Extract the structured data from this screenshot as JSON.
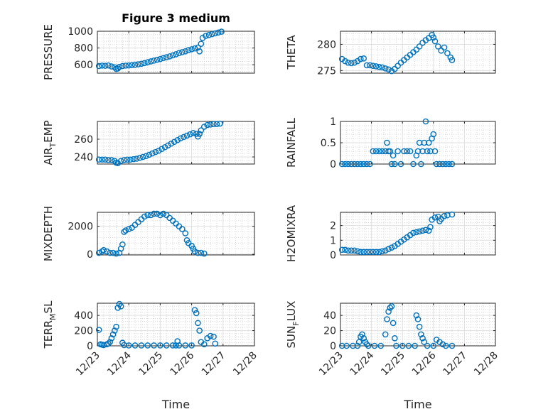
{
  "figure": {
    "title": "Figure 3 medium",
    "marker_color": "#0072BD",
    "axis_color": "#262626",
    "grid": "on",
    "minor_grid": "on"
  },
  "chart_data": [
    {
      "type": "scatter",
      "ylabel": "PRESSURE",
      "ylim": [
        500,
        1000
      ],
      "yticks": [
        600,
        800,
        1000
      ],
      "xlim": [
        0,
        5
      ],
      "xticks_labels": [
        "12/23",
        "12/24",
        "12/25",
        "12/26",
        "12/27",
        "12/28"
      ],
      "show_xticklabels": false,
      "title": "Figure 3 medium",
      "points": [
        [
          0.05,
          585
        ],
        [
          0.15,
          590
        ],
        [
          0.25,
          588
        ],
        [
          0.35,
          592
        ],
        [
          0.45,
          580
        ],
        [
          0.55,
          570
        ],
        [
          0.6,
          550
        ],
        [
          0.65,
          555
        ],
        [
          0.7,
          575
        ],
        [
          0.8,
          585
        ],
        [
          0.9,
          590
        ],
        [
          1.0,
          592
        ],
        [
          1.1,
          596
        ],
        [
          1.2,
          600
        ],
        [
          1.3,
          605
        ],
        [
          1.4,
          612
        ],
        [
          1.5,
          620
        ],
        [
          1.6,
          630
        ],
        [
          1.7,
          640
        ],
        [
          1.8,
          650
        ],
        [
          1.9,
          660
        ],
        [
          2.0,
          668
        ],
        [
          2.1,
          680
        ],
        [
          2.2,
          690
        ],
        [
          2.3,
          700
        ],
        [
          2.4,
          712
        ],
        [
          2.5,
          725
        ],
        [
          2.6,
          740
        ],
        [
          2.7,
          750
        ],
        [
          2.8,
          760
        ],
        [
          2.9,
          775
        ],
        [
          3.0,
          785
        ],
        [
          3.1,
          795
        ],
        [
          3.2,
          805
        ],
        [
          3.25,
          760
        ],
        [
          3.3,
          850
        ],
        [
          3.35,
          920
        ],
        [
          3.45,
          945
        ],
        [
          3.55,
          955
        ],
        [
          3.65,
          965
        ],
        [
          3.75,
          975
        ],
        [
          3.85,
          985
        ],
        [
          3.95,
          995
        ]
      ]
    },
    {
      "type": "scatter",
      "ylabel": "THETA",
      "ylim": [
        274.5,
        282.5
      ],
      "yticks": [
        275,
        280
      ],
      "xlim": [
        0,
        5
      ],
      "xticks_labels": [
        "12/23",
        "12/24",
        "12/25",
        "12/26",
        "12/27",
        "12/28"
      ],
      "show_xticklabels": false,
      "points": [
        [
          0.05,
          277.2
        ],
        [
          0.15,
          276.8
        ],
        [
          0.25,
          276.5
        ],
        [
          0.35,
          276.4
        ],
        [
          0.45,
          276.5
        ],
        [
          0.55,
          276.8
        ],
        [
          0.65,
          277.2
        ],
        [
          0.75,
          277.3
        ],
        [
          0.85,
          276.0
        ],
        [
          0.95,
          276.0
        ],
        [
          1.05,
          275.9
        ],
        [
          1.15,
          275.8
        ],
        [
          1.25,
          275.7
        ],
        [
          1.35,
          275.6
        ],
        [
          1.45,
          275.4
        ],
        [
          1.55,
          275.2
        ],
        [
          1.65,
          274.9
        ],
        [
          1.75,
          275.3
        ],
        [
          1.85,
          275.9
        ],
        [
          1.95,
          276.5
        ],
        [
          2.05,
          277.0
        ],
        [
          2.15,
          277.5
        ],
        [
          2.25,
          278.0
        ],
        [
          2.35,
          278.5
        ],
        [
          2.45,
          279.0
        ],
        [
          2.55,
          279.6
        ],
        [
          2.65,
          280.3
        ],
        [
          2.75,
          280.8
        ],
        [
          2.85,
          281.2
        ],
        [
          2.95,
          281.8
        ],
        [
          3.0,
          281.3
        ],
        [
          3.05,
          280.6
        ],
        [
          3.15,
          279.6
        ],
        [
          3.25,
          278.8
        ],
        [
          3.35,
          279.4
        ],
        [
          3.45,
          278.3
        ],
        [
          3.55,
          277.5
        ],
        [
          3.6,
          277.0
        ]
      ]
    },
    {
      "type": "scatter",
      "ylabel": "AIR_TEMP",
      "ylim": [
        232,
        280
      ],
      "yticks": [
        240,
        260
      ],
      "xlim": [
        0,
        5
      ],
      "xticks_labels": [
        "12/23",
        "12/24",
        "12/25",
        "12/26",
        "12/27",
        "12/28"
      ],
      "show_xticklabels": false,
      "points": [
        [
          0.05,
          237
        ],
        [
          0.15,
          237
        ],
        [
          0.25,
          237
        ],
        [
          0.35,
          236.5
        ],
        [
          0.45,
          236.5
        ],
        [
          0.55,
          235.5
        ],
        [
          0.6,
          233.5
        ],
        [
          0.65,
          233
        ],
        [
          0.75,
          235.5
        ],
        [
          0.85,
          236.5
        ],
        [
          0.95,
          237
        ],
        [
          1.05,
          237
        ],
        [
          1.15,
          237.5
        ],
        [
          1.25,
          238
        ],
        [
          1.35,
          239
        ],
        [
          1.45,
          240
        ],
        [
          1.55,
          241
        ],
        [
          1.65,
          242.5
        ],
        [
          1.75,
          244
        ],
        [
          1.85,
          245.5
        ],
        [
          1.95,
          247
        ],
        [
          2.05,
          249
        ],
        [
          2.15,
          251
        ],
        [
          2.25,
          253
        ],
        [
          2.35,
          255
        ],
        [
          2.45,
          257
        ],
        [
          2.55,
          259
        ],
        [
          2.65,
          261
        ],
        [
          2.75,
          262.5
        ],
        [
          2.85,
          264
        ],
        [
          2.95,
          265.5
        ],
        [
          3.05,
          267
        ],
        [
          3.15,
          266
        ],
        [
          3.2,
          263
        ],
        [
          3.25,
          266
        ],
        [
          3.3,
          270
        ],
        [
          3.4,
          274
        ],
        [
          3.5,
          276
        ],
        [
          3.6,
          276.5
        ],
        [
          3.7,
          277
        ],
        [
          3.8,
          277
        ],
        [
          3.9,
          277.5
        ]
      ]
    },
    {
      "type": "scatter",
      "ylabel": "RAINFALL",
      "ylim": [
        0,
        1
      ],
      "yticks": [
        0,
        0.5,
        1
      ],
      "xlim": [
        0,
        5
      ],
      "xticks_labels": [
        "12/23",
        "12/24",
        "12/25",
        "12/26",
        "12/27",
        "12/28"
      ],
      "show_xticklabels": false,
      "points": [
        [
          0.05,
          0
        ],
        [
          0.15,
          0
        ],
        [
          0.25,
          0
        ],
        [
          0.35,
          0
        ],
        [
          0.45,
          0
        ],
        [
          0.55,
          0
        ],
        [
          0.65,
          0
        ],
        [
          0.75,
          0
        ],
        [
          0.85,
          0
        ],
        [
          0.95,
          0
        ],
        [
          1.05,
          0.3
        ],
        [
          1.15,
          0.3
        ],
        [
          1.25,
          0.3
        ],
        [
          1.35,
          0.3
        ],
        [
          1.45,
          0.3
        ],
        [
          1.5,
          0.5
        ],
        [
          1.55,
          0.3
        ],
        [
          1.6,
          0.3
        ],
        [
          1.65,
          0
        ],
        [
          1.7,
          0.2
        ],
        [
          1.75,
          0
        ],
        [
          1.85,
          0.3
        ],
        [
          1.95,
          0
        ],
        [
          2.05,
          0.3
        ],
        [
          2.15,
          0.3
        ],
        [
          2.25,
          0.3
        ],
        [
          2.35,
          0
        ],
        [
          2.45,
          0.2
        ],
        [
          2.5,
          0.3
        ],
        [
          2.55,
          0.5
        ],
        [
          2.6,
          0
        ],
        [
          2.65,
          0.3
        ],
        [
          2.7,
          0.5
        ],
        [
          2.75,
          1.0
        ],
        [
          2.8,
          0.3
        ],
        [
          2.85,
          0.5
        ],
        [
          2.9,
          0.3
        ],
        [
          2.95,
          0.6
        ],
        [
          3.0,
          0.7
        ],
        [
          3.05,
          0.3
        ],
        [
          3.1,
          0
        ],
        [
          3.2,
          0
        ],
        [
          3.3,
          0
        ],
        [
          3.4,
          0
        ],
        [
          3.5,
          0
        ],
        [
          3.6,
          0
        ]
      ]
    },
    {
      "type": "scatter",
      "ylabel": "MIXDEPTH",
      "ylim": [
        -50,
        3000
      ],
      "yticks": [
        0,
        2000
      ],
      "xlim": [
        0,
        5
      ],
      "xticks_labels": [
        "12/23",
        "12/24",
        "12/25",
        "12/26",
        "12/27",
        "12/28"
      ],
      "show_xticklabels": false,
      "points": [
        [
          0.05,
          100
        ],
        [
          0.15,
          200
        ],
        [
          0.2,
          300
        ],
        [
          0.3,
          200
        ],
        [
          0.4,
          100
        ],
        [
          0.5,
          100
        ],
        [
          0.6,
          50
        ],
        [
          0.7,
          100
        ],
        [
          0.75,
          400
        ],
        [
          0.8,
          700
        ],
        [
          0.85,
          1600
        ],
        [
          0.9,
          1700
        ],
        [
          1.0,
          1800
        ],
        [
          1.1,
          1900
        ],
        [
          1.2,
          2100
        ],
        [
          1.3,
          2300
        ],
        [
          1.4,
          2500
        ],
        [
          1.5,
          2700
        ],
        [
          1.6,
          2800
        ],
        [
          1.7,
          2800
        ],
        [
          1.8,
          2900
        ],
        [
          1.9,
          2900
        ],
        [
          2.0,
          2800
        ],
        [
          2.1,
          2900
        ],
        [
          2.2,
          2800
        ],
        [
          2.3,
          2600
        ],
        [
          2.4,
          2400
        ],
        [
          2.5,
          2200
        ],
        [
          2.6,
          2000
        ],
        [
          2.7,
          1800
        ],
        [
          2.8,
          1500
        ],
        [
          2.85,
          1000
        ],
        [
          2.9,
          800
        ],
        [
          3.0,
          600
        ],
        [
          3.05,
          400
        ],
        [
          3.1,
          200
        ],
        [
          3.2,
          100
        ],
        [
          3.3,
          100
        ],
        [
          3.4,
          50
        ]
      ]
    },
    {
      "type": "scatter",
      "ylabel": "H2OMIXRA",
      "ylim": [
        0,
        2.9
      ],
      "yticks": [
        0,
        1,
        2
      ],
      "xlim": [
        0,
        5
      ],
      "xticks_labels": [
        "12/23",
        "12/24",
        "12/25",
        "12/26",
        "12/27",
        "12/28"
      ],
      "show_xticklabels": false,
      "points": [
        [
          0.05,
          0.35
        ],
        [
          0.15,
          0.35
        ],
        [
          0.25,
          0.3
        ],
        [
          0.35,
          0.3
        ],
        [
          0.45,
          0.3
        ],
        [
          0.55,
          0.25
        ],
        [
          0.65,
          0.2
        ],
        [
          0.75,
          0.2
        ],
        [
          0.85,
          0.2
        ],
        [
          0.95,
          0.2
        ],
        [
          1.05,
          0.2
        ],
        [
          1.15,
          0.2
        ],
        [
          1.25,
          0.2
        ],
        [
          1.35,
          0.25
        ],
        [
          1.45,
          0.3
        ],
        [
          1.55,
          0.4
        ],
        [
          1.65,
          0.5
        ],
        [
          1.75,
          0.6
        ],
        [
          1.85,
          0.75
        ],
        [
          1.95,
          0.9
        ],
        [
          2.05,
          1.05
        ],
        [
          2.15,
          1.2
        ],
        [
          2.25,
          1.35
        ],
        [
          2.35,
          1.5
        ],
        [
          2.45,
          1.55
        ],
        [
          2.55,
          1.6
        ],
        [
          2.65,
          1.65
        ],
        [
          2.75,
          1.7
        ],
        [
          2.85,
          1.65
        ],
        [
          2.9,
          1.9
        ],
        [
          2.95,
          2.4
        ],
        [
          3.05,
          2.55
        ],
        [
          3.15,
          2.6
        ],
        [
          3.2,
          2.3
        ],
        [
          3.25,
          2.45
        ],
        [
          3.35,
          2.65
        ],
        [
          3.45,
          2.7
        ],
        [
          3.6,
          2.75
        ]
      ]
    },
    {
      "type": "scatter",
      "ylabel": "TERR_MSL",
      "ylim": [
        0,
        560
      ],
      "yticks": [
        0,
        200,
        400
      ],
      "xlim": [
        0,
        5
      ],
      "xticks_labels": [
        "12/23",
        "12/24",
        "12/25",
        "12/26",
        "12/27",
        "12/28"
      ],
      "show_xticklabels": true,
      "xlabel": "Time",
      "points": [
        [
          0.05,
          210
        ],
        [
          0.1,
          20
        ],
        [
          0.15,
          15
        ],
        [
          0.2,
          10
        ],
        [
          0.3,
          20
        ],
        [
          0.35,
          30
        ],
        [
          0.4,
          50
        ],
        [
          0.45,
          100
        ],
        [
          0.5,
          150
        ],
        [
          0.55,
          200
        ],
        [
          0.6,
          250
        ],
        [
          0.65,
          500
        ],
        [
          0.7,
          550
        ],
        [
          0.75,
          520
        ],
        [
          0.8,
          40
        ],
        [
          0.85,
          10
        ],
        [
          1.0,
          5
        ],
        [
          1.2,
          5
        ],
        [
          1.4,
          5
        ],
        [
          1.6,
          5
        ],
        [
          1.8,
          5
        ],
        [
          2.0,
          5
        ],
        [
          2.2,
          5
        ],
        [
          2.4,
          5
        ],
        [
          2.5,
          5
        ],
        [
          2.55,
          60
        ],
        [
          2.6,
          5
        ],
        [
          2.8,
          5
        ],
        [
          3.0,
          5
        ],
        [
          3.1,
          470
        ],
        [
          3.15,
          430
        ],
        [
          3.2,
          300
        ],
        [
          3.25,
          200
        ],
        [
          3.3,
          50
        ],
        [
          3.4,
          20
        ],
        [
          3.5,
          100
        ],
        [
          3.6,
          130
        ],
        [
          3.7,
          120
        ],
        [
          3.75,
          30
        ]
      ]
    },
    {
      "type": "scatter",
      "ylabel": "SUN_FLUX",
      "ylim": [
        0,
        56
      ],
      "yticks": [
        0,
        20,
        40
      ],
      "xlim": [
        0,
        5
      ],
      "xticks_labels": [
        "12/23",
        "12/24",
        "12/25",
        "12/26",
        "12/27",
        "12/28"
      ],
      "show_xticklabels": true,
      "xlabel": "Time",
      "points": [
        [
          0.05,
          0
        ],
        [
          0.2,
          0
        ],
        [
          0.4,
          0
        ],
        [
          0.55,
          0
        ],
        [
          0.6,
          5
        ],
        [
          0.65,
          12
        ],
        [
          0.7,
          15
        ],
        [
          0.75,
          10
        ],
        [
          0.8,
          5
        ],
        [
          0.85,
          2
        ],
        [
          0.9,
          0
        ],
        [
          1.1,
          0
        ],
        [
          1.3,
          0
        ],
        [
          1.45,
          15
        ],
        [
          1.5,
          35
        ],
        [
          1.55,
          45
        ],
        [
          1.6,
          50
        ],
        [
          1.65,
          52
        ],
        [
          1.7,
          30
        ],
        [
          1.75,
          10
        ],
        [
          1.8,
          0
        ],
        [
          2.0,
          0
        ],
        [
          2.2,
          0
        ],
        [
          2.4,
          0
        ],
        [
          2.45,
          40
        ],
        [
          2.5,
          35
        ],
        [
          2.55,
          25
        ],
        [
          2.6,
          15
        ],
        [
          2.65,
          10
        ],
        [
          2.7,
          5
        ],
        [
          2.8,
          0
        ],
        [
          3.0,
          0
        ],
        [
          3.1,
          8
        ],
        [
          3.2,
          5
        ],
        [
          3.3,
          2
        ],
        [
          3.4,
          0
        ],
        [
          3.6,
          0
        ]
      ]
    }
  ]
}
